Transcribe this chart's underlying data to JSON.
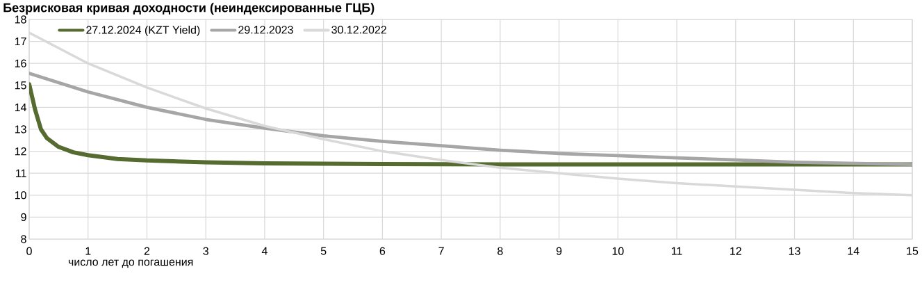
{
  "chart_data": {
    "type": "line",
    "title": "Безрисковая кривая доходности (неиндексированные ГЦБ)",
    "xlabel": "число лет до погашения",
    "xlim": [
      0,
      15
    ],
    "xticks": [
      0,
      1,
      2,
      3,
      4,
      5,
      6,
      7,
      8,
      9,
      10,
      11,
      12,
      13,
      14,
      15
    ],
    "ylim": [
      8,
      18
    ],
    "yticks": [
      8,
      9,
      10,
      11,
      12,
      13,
      14,
      15,
      16,
      17,
      18
    ],
    "grid": true,
    "legend": "top left",
    "marker": "none",
    "line_style": "solid",
    "series": [
      {
        "name": "27.12.2024 (KZT Yield)",
        "color": "#556b2f",
        "x": [
          0,
          0.1,
          0.2,
          0.3,
          0.5,
          0.75,
          1,
          1.5,
          2,
          3,
          4,
          5,
          6,
          8,
          10,
          12,
          15
        ],
        "values": [
          15.05,
          13.9,
          13.0,
          12.6,
          12.2,
          11.95,
          11.82,
          11.65,
          11.58,
          11.5,
          11.45,
          11.43,
          11.42,
          11.4,
          11.4,
          11.4,
          11.4
        ]
      },
      {
        "name": "29.12.2023",
        "color": "#a6a6a6",
        "x": [
          0,
          1,
          2,
          3,
          4,
          5,
          6,
          7,
          8,
          9,
          10,
          11,
          12,
          13,
          14,
          15
        ],
        "values": [
          15.55,
          14.7,
          14.0,
          13.45,
          13.05,
          12.7,
          12.45,
          12.25,
          12.05,
          11.9,
          11.8,
          11.7,
          11.6,
          11.5,
          11.45,
          11.4
        ]
      },
      {
        "name": "30.12.2022",
        "color": "#d9d9d9",
        "x": [
          0,
          1,
          2,
          3,
          4,
          5,
          6,
          7,
          8,
          9,
          10,
          11,
          12,
          13,
          14,
          15
        ],
        "values": [
          17.4,
          16.0,
          14.9,
          13.95,
          13.15,
          12.55,
          12.0,
          11.6,
          11.25,
          11.0,
          10.75,
          10.55,
          10.4,
          10.25,
          10.1,
          10.0
        ]
      }
    ]
  }
}
